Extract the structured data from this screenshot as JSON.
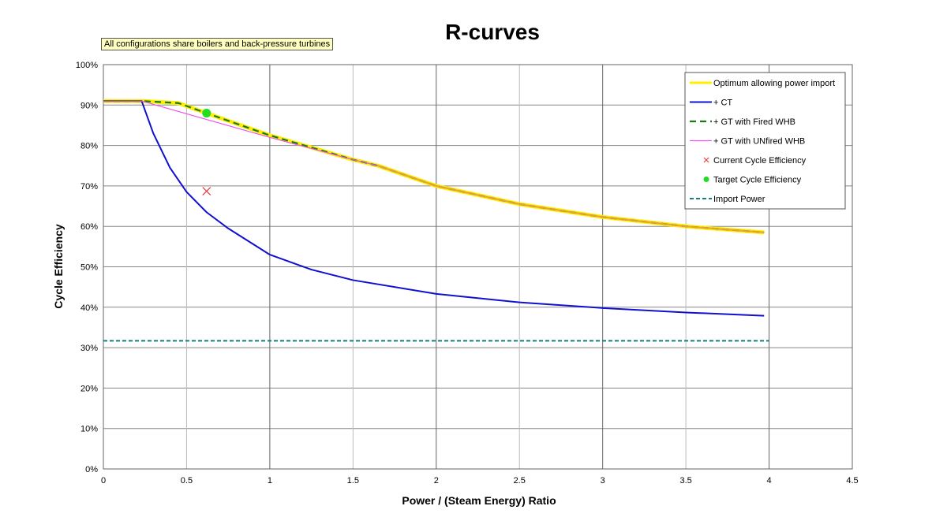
{
  "chart_data": {
    "type": "line",
    "title": "R-curves",
    "annotation": "All configurations share boilers and back-pressure turbines",
    "xlabel": "Power / (Steam Energy) Ratio",
    "ylabel": "Cycle Efficiency",
    "xlim": [
      0,
      4.5
    ],
    "ylim": [
      0,
      100
    ],
    "xticks": [
      "0",
      "0.5",
      "1",
      "1.5",
      "2",
      "2.5",
      "3",
      "3.5",
      "4",
      "4.5"
    ],
    "yticks": [
      "0%",
      "10%",
      "20%",
      "30%",
      "40%",
      "50%",
      "60%",
      "70%",
      "80%",
      "90%",
      "100%"
    ],
    "grid": true,
    "legend_position": "top-right",
    "series": [
      {
        "name": "Optimum allowing power import",
        "color": "#ffee00",
        "style": "solid-thick",
        "x": [
          0,
          0.23,
          0.45,
          0.62,
          1,
          1.5,
          1.65,
          2,
          2.5,
          3,
          3.5,
          3.97
        ],
        "y": [
          91,
          91,
          90.5,
          88,
          82.5,
          76.5,
          75,
          70,
          65.5,
          62.3,
          60,
          58.5
        ]
      },
      {
        "name": "+ CT",
        "color": "#1010d0",
        "style": "solid",
        "x": [
          0,
          0.23,
          0.3,
          0.4,
          0.5,
          0.62,
          0.75,
          1,
          1.25,
          1.5,
          2,
          2.5,
          3,
          3.5,
          3.97
        ],
        "y": [
          91,
          91,
          83,
          74.5,
          68.5,
          63.5,
          59.5,
          53,
          49.3,
          46.7,
          43.3,
          41.2,
          39.8,
          38.7,
          37.9
        ]
      },
      {
        "name": "+ GT with Fired WHB",
        "color": "#1a7a1a",
        "style": "dashed",
        "x": [
          0,
          0.23,
          0.45,
          0.62,
          1,
          1.5,
          1.65,
          2,
          2.5,
          3,
          3.5,
          3.97
        ],
        "y": [
          91,
          91,
          90.5,
          88,
          82.5,
          76.5,
          75,
          70,
          65.5,
          62.3,
          60,
          58.5
        ]
      },
      {
        "name": "+ GT with UNfired WHB",
        "color": "#ee55ee",
        "style": "solid-thin",
        "x": [
          0,
          0.23,
          1,
          1.5,
          1.65,
          2,
          2.5,
          3,
          3.5,
          3.97
        ],
        "y": [
          91,
          91,
          82,
          76.5,
          75,
          70,
          65.5,
          62.3,
          60,
          58.5
        ]
      },
      {
        "name": "Current Cycle Efficiency",
        "color": "#e84040",
        "style": "marker-x",
        "x": [
          0.62
        ],
        "y": [
          68.7
        ]
      },
      {
        "name": "Target Cycle Efficiency",
        "color": "#22dd22",
        "style": "marker-dot",
        "x": [
          0.62
        ],
        "y": [
          88
        ]
      },
      {
        "name": "Import Power",
        "color": "#128080",
        "style": "dashed-thin",
        "x": [
          0,
          4
        ],
        "y": [
          31.7,
          31.7
        ]
      }
    ]
  }
}
